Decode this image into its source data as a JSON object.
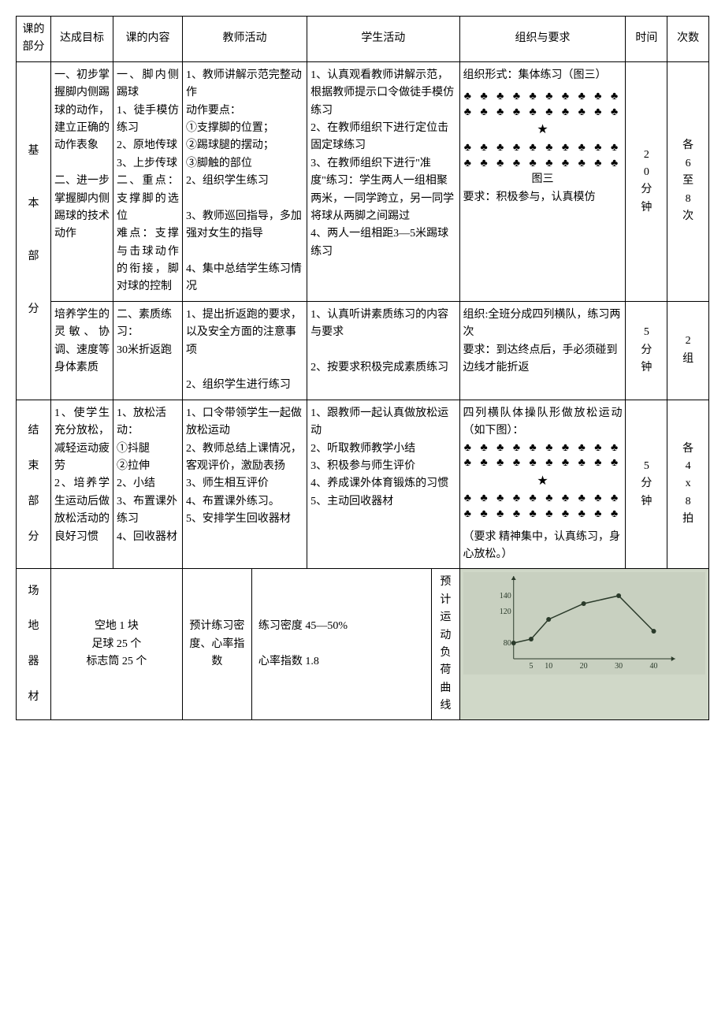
{
  "headers": {
    "col1": "课的部分",
    "col2": "达成目标",
    "col3": "课的内容",
    "col4": "教师活动",
    "col5": "学生活动",
    "col6": "组织与要求",
    "col7": "时间",
    "col8": "次数"
  },
  "section_main": {
    "label_chars": [
      "基",
      "本",
      "部",
      "分"
    ],
    "row1": {
      "goal": "一、初步掌握脚内侧踢球的动作，建立正确的动作表象\n\n二、进一步掌握脚内侧踢球的技术动作",
      "content": "一、脚内侧踢球\n1、徒手模仿练习\n2、原地传球\n3、上步传球\n二、重点：支撑脚的选位\n难点：支撑与击球动作的衔接，脚对球的控制",
      "teacher": "1、教师讲解示范完整动作\n  动作要点：\n①支撑脚的位置；\n②踢球腿的摆动；\n③脚触的部位\n2、组织学生练习\n\n3、教师巡回指导，多加强对女生的指导\n\n4、集中总结学生练习情况",
      "student": "1、认真观看教师讲解示范，根据教师提示口令做徒手模仿练习\n2、在教师组织下进行定位击固定球练习\n3、在教师组织下进行\"准度\"练习：学生两人一组相聚两米，一同学跨立，另一同学将球从两脚之间踢过\n4、两人一组相距3—5米踢球练习",
      "org_title": "组织形式：集体练习（图三）",
      "org_caption": "图三",
      "org_req": "要求：积极参与，认真模仿",
      "time": "20分钟",
      "count": "各6至8次"
    },
    "row2": {
      "goal": "培养学生的灵敏、协调、速度等身体素质",
      "content": "二、素质练习：\n30米折返跑",
      "teacher": "1、提出折返跑的要求，以及安全方面的注意事项\n\n2、组织学生进行练习",
      "student": "1、认真听讲素质练习的内容与要求\n\n2、按要求积极完成素质练习",
      "org": "组织:全班分成四列横队，练习两次\n要求：到达终点后，手必须碰到边线才能折返",
      "time": "5分钟",
      "count": "2组"
    }
  },
  "section_end": {
    "label_chars": [
      "结",
      "束",
      "部",
      "分"
    ],
    "goal": "1、使学生充分放松，减轻运动疲劳\n2、培养学生运动后做放松活动的良好习惯",
    "content": "1、放松活动：\n①抖腿\n②拉伸\n2、小结\n3、布置课外练习\n4、回收器材",
    "teacher": "1、口令带领学生一起做放松运动\n2、教师总结上课情况，客观评价，激励表扬\n3、师生相互评价\n4、布置课外练习。\n5、安排学生回收器材",
    "student": "1、跟教师一起认真做放松运动\n2、听取教师教学小结\n3、积极参与师生评价\n4、养成课外体育锻炼的习惯\n5、主动回收器材",
    "org_title": "四列横队体操队形做放松运动（如下图）：",
    "org_req": "（要求 精神集中，认真练习，身心放松。）",
    "time": "5分钟",
    "count": "各4x8拍"
  },
  "footer": {
    "equip_label_chars": [
      "场",
      "地",
      "器",
      "材"
    ],
    "equip": "空地 1 块\n足球 25 个\n标志筒 25 个",
    "density_label": "预计练习密度、心率指数",
    "density": "练习密度 45—50%\n\n心率指数 1.8",
    "curve_label": "预计运动负荷曲线"
  },
  "formation": {
    "person_glyph": "♠",
    "star_glyph": "★"
  },
  "chart": {
    "type": "line",
    "background": "#c8d0c0",
    "axis_color": "#2a3a2a",
    "line_color": "#2a3a2a",
    "marker_color": "#2a3a2a",
    "marker_size": 3,
    "line_width": 1.5,
    "xlim": [
      0,
      45
    ],
    "ylim": [
      60,
      160
    ],
    "xticks": [
      5,
      10,
      20,
      30,
      40
    ],
    "yticks": [
      80,
      120,
      140
    ],
    "tick_fontsize": 10,
    "points": [
      {
        "x": 0,
        "y": 80
      },
      {
        "x": 5,
        "y": 85
      },
      {
        "x": 10,
        "y": 110
      },
      {
        "x": 20,
        "y": 130
      },
      {
        "x": 30,
        "y": 140
      },
      {
        "x": 40,
        "y": 95
      }
    ]
  }
}
